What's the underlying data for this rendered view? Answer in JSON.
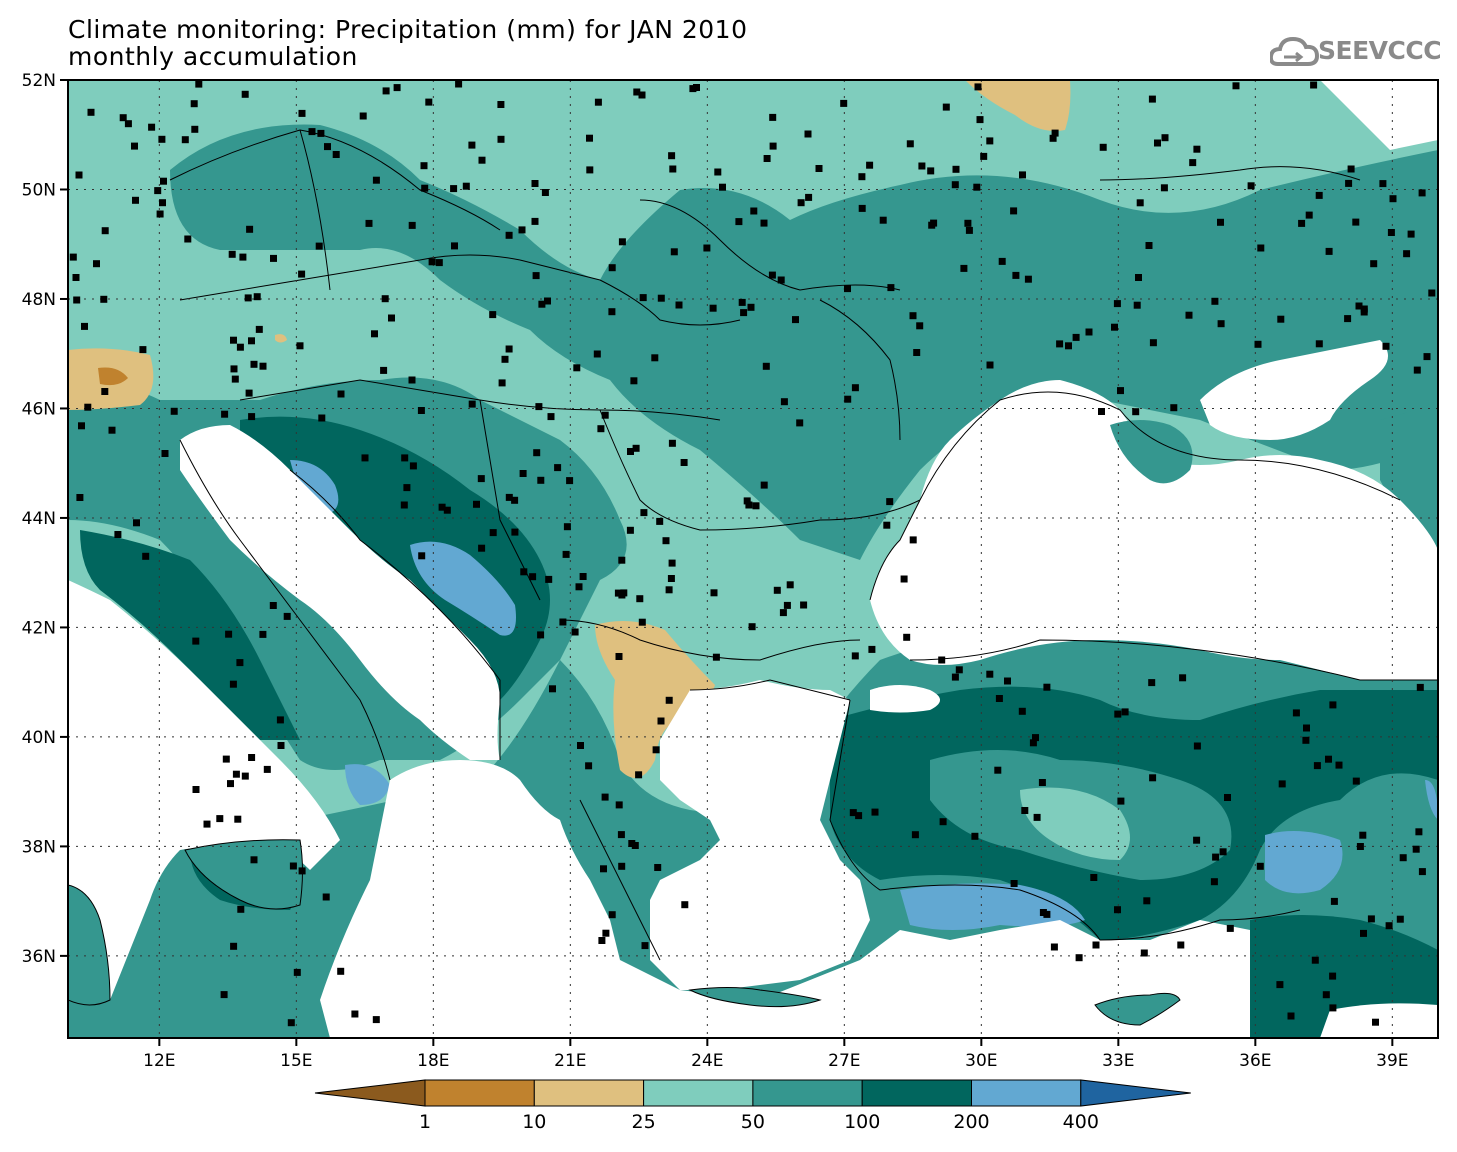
{
  "title": {
    "line1": "Climate monitoring: Precipitation (mm) for JAN 2010",
    "line2": "monthly accumulation"
  },
  "logo": {
    "text": "SEEVCCC",
    "icon": "cloud-icon"
  },
  "colors": {
    "frame": "#000000",
    "sea": "#ffffff",
    "band_lt1": "#8b5a1e",
    "band_1_10": "#c0822e",
    "band_10_25": "#dfc07f",
    "band_25_50": "#7fcdbd",
    "band_50_100": "#35978f",
    "band_100_200": "#01665e",
    "band_200_400": "#62a8d2",
    "band_gt400": "#1f64a0",
    "station": "#000000"
  },
  "axes": {
    "lon_range": [
      10,
      40
    ],
    "lat_range": [
      34.5,
      52
    ],
    "lon_ticks": [
      "12E",
      "15E",
      "18E",
      "21E",
      "24E",
      "27E",
      "30E",
      "33E",
      "36E",
      "39E"
    ],
    "lat_ticks": [
      "36N",
      "38N",
      "40N",
      "42N",
      "44N",
      "46N",
      "48N",
      "50N",
      "52N"
    ],
    "lon_tick_values": [
      12,
      15,
      18,
      21,
      24,
      27,
      30,
      33,
      36,
      39
    ],
    "lat_tick_values": [
      36,
      38,
      40,
      42,
      44,
      46,
      48,
      50,
      52
    ],
    "grid": "dotted"
  },
  "colorbar": {
    "labels": [
      "1",
      "10",
      "25",
      "50",
      "100",
      "200",
      "400"
    ],
    "extend": "both"
  }
}
